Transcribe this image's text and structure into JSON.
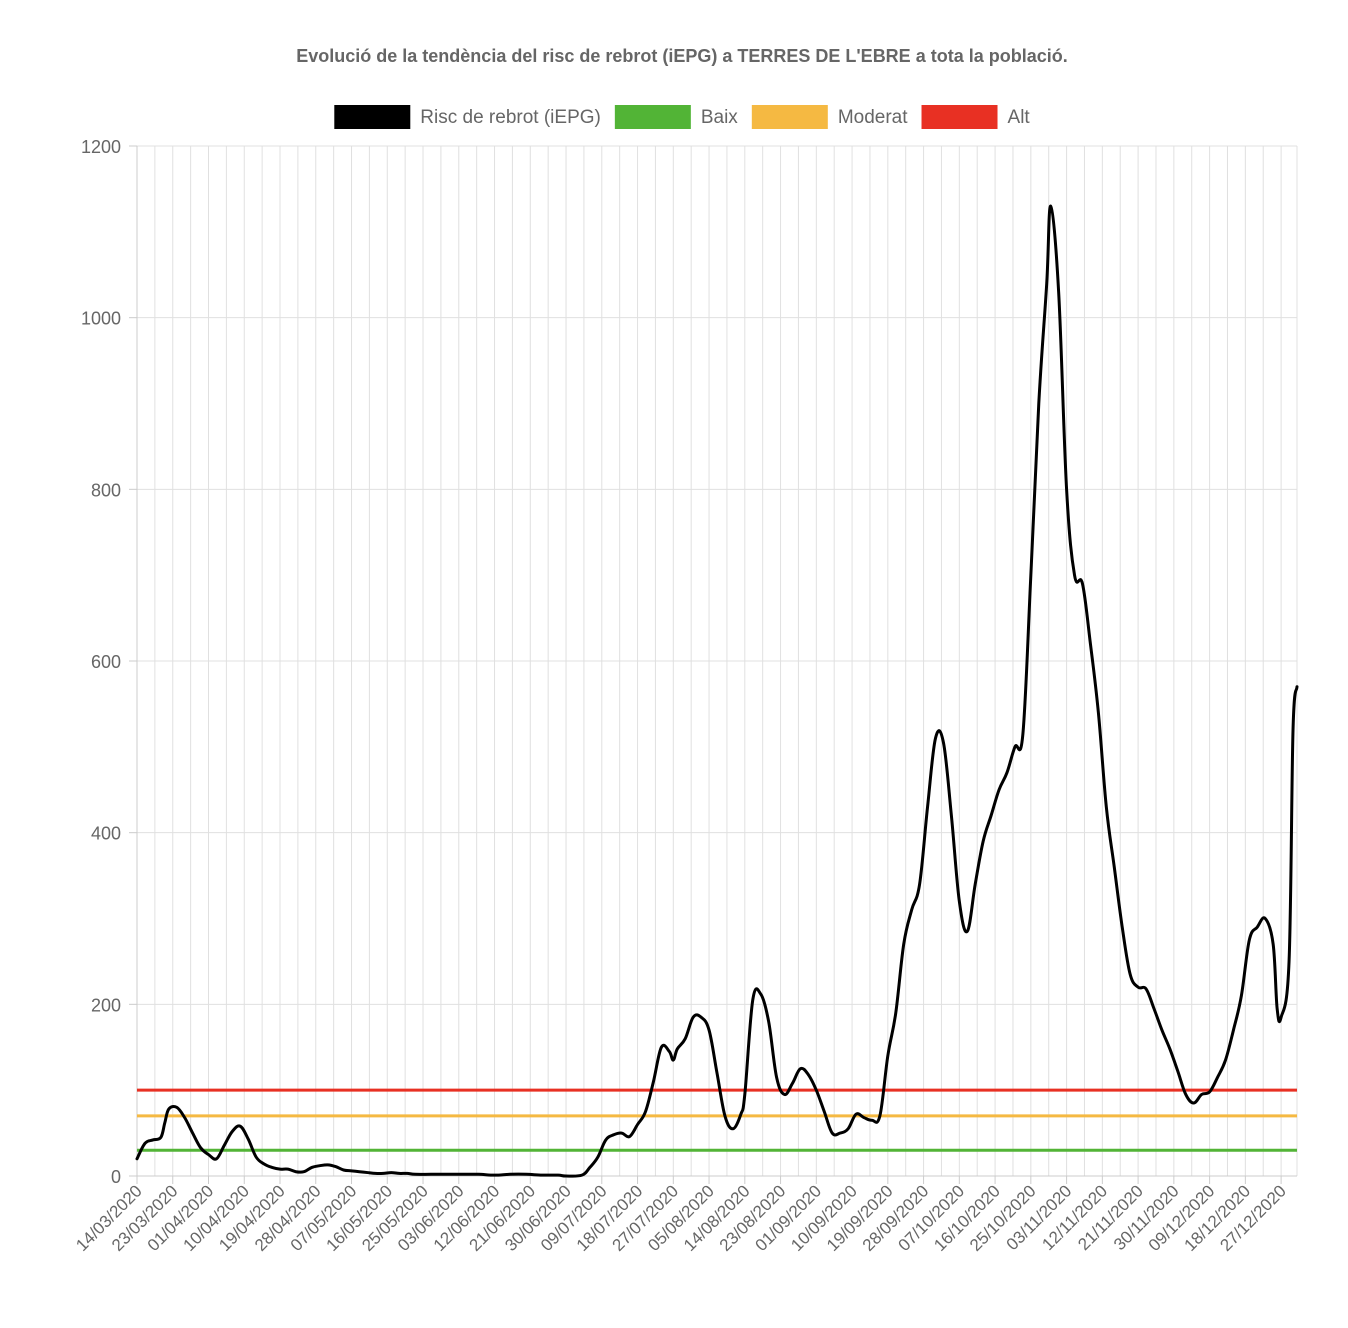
{
  "chart_data": {
    "type": "line",
    "title": "Evolució de la tendència del risc de rebrot (iEPG) a TERRES DE L'EBRE a tota la població.",
    "xlabel": "",
    "ylabel": "",
    "ylim": [
      0,
      1200
    ],
    "y_ticks": [
      0,
      200,
      400,
      600,
      800,
      1000,
      1200
    ],
    "grid": true,
    "legend_position": "top",
    "start_date": "14/03/2020",
    "end_date": "31/12/2020",
    "x_tick_labels": [
      "14/03/2020",
      "23/03/2020",
      "01/04/2020",
      "10/04/2020",
      "19/04/2020",
      "28/04/2020",
      "07/05/2020",
      "16/05/2020",
      "25/05/2020",
      "03/06/2020",
      "12/06/2020",
      "21/06/2020",
      "30/06/2020",
      "09/07/2020",
      "18/07/2020",
      "27/07/2020",
      "05/08/2020",
      "14/08/2020",
      "23/08/2020",
      "01/09/2020",
      "10/09/2020",
      "19/09/2020",
      "28/09/2020",
      "07/10/2020",
      "16/10/2020",
      "25/10/2020",
      "03/11/2020",
      "12/11/2020",
      "21/11/2020",
      "30/11/2020",
      "09/12/2020",
      "18/12/2020",
      "27/12/2020"
    ],
    "legend": [
      {
        "name": "Risc de rebrot (iEPG)",
        "color": "#000000"
      },
      {
        "name": "Baix",
        "color": "#52b436"
      },
      {
        "name": "Moderat",
        "color": "#f5b942"
      },
      {
        "name": "Alt",
        "color": "#e83023"
      }
    ],
    "thresholds": [
      {
        "name": "Baix",
        "value": 30,
        "color": "#52b436"
      },
      {
        "name": "Moderat",
        "value": 70,
        "color": "#f5b942"
      },
      {
        "name": "Alt",
        "value": 100,
        "color": "#e83023"
      }
    ],
    "series": [
      {
        "name": "Risc de rebrot (iEPG)",
        "color": "#000000",
        "points": [
          [
            "14/03/2020",
            20
          ],
          [
            "16/03/2020",
            38
          ],
          [
            "18/03/2020",
            42
          ],
          [
            "20/03/2020",
            45
          ],
          [
            "21/03/2020",
            62
          ],
          [
            "22/03/2020",
            78
          ],
          [
            "24/03/2020",
            80
          ],
          [
            "26/03/2020",
            68
          ],
          [
            "28/03/2020",
            50
          ],
          [
            "30/03/2020",
            33
          ],
          [
            "01/04/2020",
            25
          ],
          [
            "03/04/2020",
            20
          ],
          [
            "05/04/2020",
            36
          ],
          [
            "07/04/2020",
            52
          ],
          [
            "09/04/2020",
            58
          ],
          [
            "11/04/2020",
            43
          ],
          [
            "13/04/2020",
            22
          ],
          [
            "15/04/2020",
            14
          ],
          [
            "17/04/2020",
            10
          ],
          [
            "19/04/2020",
            8
          ],
          [
            "21/04/2020",
            8
          ],
          [
            "23/04/2020",
            5
          ],
          [
            "25/04/2020",
            5
          ],
          [
            "27/04/2020",
            10
          ],
          [
            "29/04/2020",
            12
          ],
          [
            "01/05/2020",
            13
          ],
          [
            "03/05/2020",
            11
          ],
          [
            "05/05/2020",
            7
          ],
          [
            "07/05/2020",
            6
          ],
          [
            "09/05/2020",
            5
          ],
          [
            "11/05/2020",
            4
          ],
          [
            "13/05/2020",
            3
          ],
          [
            "15/05/2020",
            3
          ],
          [
            "17/05/2020",
            4
          ],
          [
            "19/05/2020",
            3
          ],
          [
            "21/05/2020",
            3
          ],
          [
            "23/05/2020",
            2
          ],
          [
            "27/05/2020",
            2
          ],
          [
            "31/05/2020",
            2
          ],
          [
            "04/06/2020",
            2
          ],
          [
            "08/06/2020",
            2
          ],
          [
            "12/06/2020",
            1
          ],
          [
            "16/06/2020",
            2
          ],
          [
            "20/06/2020",
            2
          ],
          [
            "24/06/2020",
            1
          ],
          [
            "28/06/2020",
            1
          ],
          [
            "30/06/2020",
            0
          ],
          [
            "04/07/2020",
            1
          ],
          [
            "06/07/2020",
            10
          ],
          [
            "08/07/2020",
            22
          ],
          [
            "10/07/2020",
            42
          ],
          [
            "12/07/2020",
            48
          ],
          [
            "14/07/2020",
            50
          ],
          [
            "16/07/2020",
            46
          ],
          [
            "18/07/2020",
            60
          ],
          [
            "20/07/2020",
            75
          ],
          [
            "22/07/2020",
            110
          ],
          [
            "24/07/2020",
            150
          ],
          [
            "26/07/2020",
            145
          ],
          [
            "27/07/2020",
            135
          ],
          [
            "28/07/2020",
            148
          ],
          [
            "30/07/2020",
            160
          ],
          [
            "01/08/2020",
            185
          ],
          [
            "03/08/2020",
            185
          ],
          [
            "05/08/2020",
            170
          ],
          [
            "07/08/2020",
            120
          ],
          [
            "09/08/2020",
            70
          ],
          [
            "11/08/2020",
            55
          ],
          [
            "13/08/2020",
            72
          ],
          [
            "14/08/2020",
            95
          ],
          [
            "16/08/2020",
            205
          ],
          [
            "18/08/2020",
            212
          ],
          [
            "20/08/2020",
            180
          ],
          [
            "22/08/2020",
            115
          ],
          [
            "24/08/2020",
            95
          ],
          [
            "26/08/2020",
            108
          ],
          [
            "28/08/2020",
            125
          ],
          [
            "30/08/2020",
            118
          ],
          [
            "01/09/2020",
            100
          ],
          [
            "03/09/2020",
            75
          ],
          [
            "05/09/2020",
            50
          ],
          [
            "07/09/2020",
            50
          ],
          [
            "09/09/2020",
            55
          ],
          [
            "11/09/2020",
            72
          ],
          [
            "13/09/2020",
            68
          ],
          [
            "15/09/2020",
            65
          ],
          [
            "17/09/2020",
            70
          ],
          [
            "19/09/2020",
            140
          ],
          [
            "21/09/2020",
            190
          ],
          [
            "23/09/2020",
            270
          ],
          [
            "25/09/2020",
            310
          ],
          [
            "27/09/2020",
            340
          ],
          [
            "29/09/2020",
            430
          ],
          [
            "01/10/2020",
            510
          ],
          [
            "03/10/2020",
            505
          ],
          [
            "05/10/2020",
            420
          ],
          [
            "07/10/2020",
            320
          ],
          [
            "09/10/2020",
            285
          ],
          [
            "11/10/2020",
            340
          ],
          [
            "13/10/2020",
            390
          ],
          [
            "15/10/2020",
            420
          ],
          [
            "17/10/2020",
            450
          ],
          [
            "19/10/2020",
            470
          ],
          [
            "21/10/2020",
            500
          ],
          [
            "23/10/2020",
            515
          ],
          [
            "25/10/2020",
            700
          ],
          [
            "27/10/2020",
            900
          ],
          [
            "29/10/2020",
            1040
          ],
          [
            "30/10/2020",
            1130
          ],
          [
            "01/11/2020",
            1030
          ],
          [
            "03/11/2020",
            800
          ],
          [
            "05/11/2020",
            700
          ],
          [
            "07/11/2020",
            690
          ],
          [
            "09/11/2020",
            620
          ],
          [
            "11/11/2020",
            540
          ],
          [
            "13/11/2020",
            430
          ],
          [
            "15/11/2020",
            360
          ],
          [
            "17/11/2020",
            290
          ],
          [
            "19/11/2020",
            235
          ],
          [
            "21/11/2020",
            220
          ],
          [
            "23/11/2020",
            218
          ],
          [
            "25/11/2020",
            195
          ],
          [
            "27/11/2020",
            170
          ],
          [
            "29/11/2020",
            148
          ],
          [
            "01/12/2020",
            122
          ],
          [
            "03/12/2020",
            95
          ],
          [
            "05/12/2020",
            85
          ],
          [
            "07/12/2020",
            95
          ],
          [
            "09/12/2020",
            98
          ],
          [
            "11/12/2020",
            115
          ],
          [
            "13/12/2020",
            135
          ],
          [
            "15/12/2020",
            170
          ],
          [
            "17/12/2020",
            210
          ],
          [
            "19/12/2020",
            275
          ],
          [
            "21/12/2020",
            290
          ],
          [
            "23/12/2020",
            300
          ],
          [
            "25/12/2020",
            270
          ],
          [
            "26/12/2020",
            195
          ],
          [
            "27/12/2020",
            185
          ],
          [
            "29/12/2020",
            250
          ],
          [
            "30/12/2020",
            520
          ],
          [
            "31/12/2020",
            570
          ]
        ]
      }
    ]
  }
}
